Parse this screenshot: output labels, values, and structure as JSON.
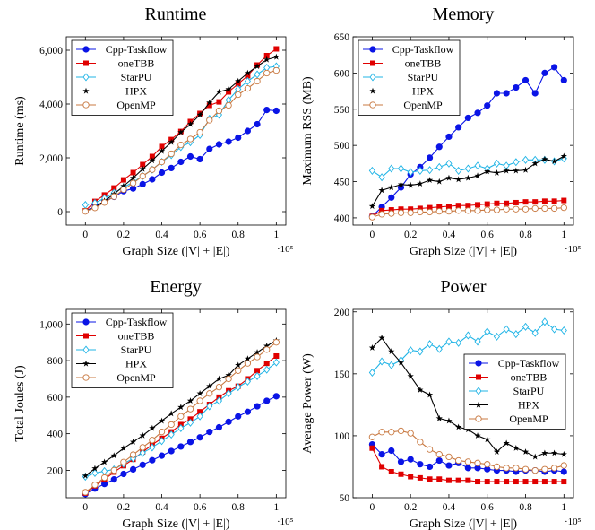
{
  "colors": {
    "Cpp-Taskflow": "#0a14e6",
    "oneTBB": "#e00000",
    "StarPU": "#20b4e6",
    "HPX": "#000000",
    "OpenMP": "#c87840"
  },
  "chart_data": [
    {
      "type": "line",
      "title": "Runtime",
      "xlabel": "Graph Size (|V| + |E|)",
      "ylabel": "Runtime (ms)",
      "x_multiplier": "·10⁵",
      "xlim": [
        -0.1,
        1.05
      ],
      "ylim": [
        -500,
        6500
      ],
      "xticks": [
        0,
        0.2,
        0.4,
        0.6,
        0.8,
        1
      ],
      "xtick_labels": [
        "0",
        "0.2",
        "0.4",
        "0.6",
        "0.8",
        "1"
      ],
      "yticks": [
        0,
        2000,
        4000,
        6000
      ],
      "ytick_labels": [
        "0",
        "2,000",
        "4,000",
        "6,000"
      ],
      "legend": "top-left",
      "x": [
        0,
        0.05,
        0.1,
        0.15,
        0.2,
        0.25,
        0.3,
        0.35,
        0.4,
        0.45,
        0.5,
        0.55,
        0.6,
        0.65,
        0.7,
        0.75,
        0.8,
        0.85,
        0.9,
        0.95,
        1.0
      ],
      "series": [
        {
          "name": "Cpp-Taskflow",
          "values": [
            20,
            200,
            380,
            550,
            760,
            860,
            1020,
            1200,
            1450,
            1620,
            1850,
            2050,
            1950,
            2330,
            2500,
            2600,
            2750,
            3000,
            3250,
            3780,
            3750
          ]
        },
        {
          "name": "oneTBB",
          "values": [
            30,
            380,
            620,
            880,
            1180,
            1450,
            1750,
            2050,
            2420,
            2680,
            2980,
            3350,
            3650,
            3950,
            4080,
            4450,
            4750,
            5050,
            5450,
            5800,
            6050
          ]
        },
        {
          "name": "StarPU",
          "values": [
            250,
            320,
            500,
            700,
            900,
            1100,
            1320,
            1560,
            1850,
            2100,
            2400,
            2580,
            2850,
            3450,
            3600,
            4150,
            4550,
            4850,
            5100,
            5350,
            5400
          ]
        },
        {
          "name": "HPX",
          "values": [
            20,
            150,
            400,
            650,
            950,
            1250,
            1580,
            1900,
            2250,
            2580,
            2950,
            3250,
            3600,
            4050,
            4450,
            4550,
            4850,
            5150,
            5400,
            5650,
            5750
          ]
        },
        {
          "name": "OpenMP",
          "values": [
            10,
            140,
            340,
            560,
            820,
            1060,
            1320,
            1560,
            1850,
            2150,
            2480,
            2700,
            2950,
            3400,
            3750,
            3950,
            4350,
            4580,
            4850,
            5150,
            5250
          ]
        }
      ]
    },
    {
      "type": "line",
      "title": "Memory",
      "xlabel": "Graph Size (|V| + |E|)",
      "ylabel": "Maximum RSS (MB)",
      "x_multiplier": "·10⁵",
      "xlim": [
        -0.1,
        1.05
      ],
      "ylim": [
        390,
        650
      ],
      "xticks": [
        0,
        0.2,
        0.4,
        0.6,
        0.8,
        1
      ],
      "xtick_labels": [
        "0",
        "0.2",
        "0.4",
        "0.6",
        "0.8",
        "1"
      ],
      "yticks": [
        400,
        450,
        500,
        550,
        600,
        650
      ],
      "ytick_labels": [
        "400",
        "450",
        "500",
        "550",
        "600",
        "650"
      ],
      "legend": "top-left",
      "x": [
        0,
        0.05,
        0.1,
        0.15,
        0.2,
        0.25,
        0.3,
        0.35,
        0.4,
        0.45,
        0.5,
        0.55,
        0.6,
        0.65,
        0.7,
        0.75,
        0.8,
        0.85,
        0.9,
        0.95,
        1.0
      ],
      "series": [
        {
          "name": "Cpp-Taskflow",
          "values": [
            402,
            415,
            428,
            442,
            460,
            470,
            483,
            498,
            512,
            525,
            538,
            545,
            555,
            572,
            572,
            580,
            590,
            572,
            600,
            608,
            590
          ]
        },
        {
          "name": "oneTBB",
          "values": [
            402,
            410,
            411,
            412,
            412,
            413,
            414,
            415,
            416,
            417,
            417,
            418,
            419,
            420,
            420,
            421,
            422,
            422,
            423,
            423,
            424
          ]
        },
        {
          "name": "StarPU",
          "values": [
            465,
            456,
            468,
            468,
            463,
            465,
            466,
            470,
            475,
            465,
            468,
            472,
            468,
            475,
            472,
            477,
            480,
            480,
            480,
            478,
            482
          ]
        },
        {
          "name": "HPX",
          "values": [
            416,
            438,
            442,
            446,
            445,
            447,
            452,
            450,
            455,
            453,
            455,
            458,
            464,
            462,
            465,
            465,
            466,
            475,
            481,
            478,
            485
          ]
        },
        {
          "name": "OpenMP",
          "values": [
            401,
            405,
            406,
            407,
            407,
            408,
            408,
            409,
            409,
            410,
            410,
            410,
            411,
            411,
            412,
            412,
            412,
            413,
            413,
            413,
            414
          ]
        }
      ]
    },
    {
      "type": "line",
      "title": "Energy",
      "xlabel": "Graph Size (|V| + |E|)",
      "ylabel": "Total Joules (J)",
      "x_multiplier": "·10⁵",
      "xlim": [
        -0.1,
        1.05
      ],
      "ylim": [
        50,
        1080
      ],
      "xticks": [
        0,
        0.2,
        0.4,
        0.6,
        0.8,
        1
      ],
      "xtick_labels": [
        "0",
        "0.2",
        "0.4",
        "0.6",
        "0.8",
        "1"
      ],
      "yticks": [
        200,
        400,
        600,
        800,
        1000
      ],
      "ytick_labels": [
        "200",
        "400",
        "600",
        "800",
        "1,000"
      ],
      "legend": "top-left",
      "x": [
        0,
        0.05,
        0.1,
        0.15,
        0.2,
        0.25,
        0.3,
        0.35,
        0.4,
        0.45,
        0.5,
        0.55,
        0.6,
        0.65,
        0.7,
        0.75,
        0.8,
        0.85,
        0.9,
        0.95,
        1.0
      ],
      "series": [
        {
          "name": "Cpp-Taskflow",
          "values": [
            70,
            100,
            125,
            150,
            180,
            205,
            230,
            255,
            280,
            305,
            330,
            355,
            380,
            410,
            435,
            465,
            495,
            520,
            550,
            580,
            605
          ]
        },
        {
          "name": "oneTBB",
          "values": [
            75,
            115,
            150,
            190,
            225,
            260,
            300,
            340,
            375,
            410,
            450,
            480,
            520,
            560,
            600,
            635,
            660,
            700,
            745,
            785,
            825
          ]
        },
        {
          "name": "StarPU",
          "values": [
            165,
            185,
            195,
            205,
            235,
            265,
            295,
            325,
            360,
            395,
            430,
            460,
            495,
            550,
            580,
            620,
            655,
            685,
            715,
            750,
            790
          ]
        },
        {
          "name": "HPX",
          "values": [
            170,
            210,
            245,
            280,
            320,
            355,
            390,
            430,
            470,
            510,
            545,
            580,
            620,
            660,
            700,
            720,
            775,
            810,
            845,
            880,
            910
          ]
        },
        {
          "name": "OpenMP",
          "values": [
            80,
            120,
            160,
            200,
            245,
            285,
            325,
            365,
            410,
            450,
            495,
            535,
            580,
            620,
            655,
            700,
            745,
            785,
            820,
            860,
            900
          ]
        }
      ]
    },
    {
      "type": "line",
      "title": "Power",
      "xlabel": "Graph Size (|V| + |E|)",
      "ylabel": "Average Power (W)",
      "x_multiplier": "·10⁵",
      "xlim": [
        -0.1,
        1.05
      ],
      "ylim": [
        50,
        202
      ],
      "xticks": [
        0,
        0.2,
        0.4,
        0.6,
        0.8,
        1
      ],
      "xtick_labels": [
        "0",
        "0.2",
        "0.4",
        "0.6",
        "0.8",
        "1"
      ],
      "yticks": [
        50,
        100,
        150,
        200
      ],
      "ytick_labels": [
        "50",
        "100",
        "150",
        "200"
      ],
      "legend": "middle-right",
      "x": [
        0,
        0.05,
        0.1,
        0.15,
        0.2,
        0.25,
        0.3,
        0.35,
        0.4,
        0.45,
        0.5,
        0.55,
        0.6,
        0.65,
        0.7,
        0.75,
        0.8,
        0.85,
        0.9,
        0.95,
        1.0
      ],
      "series": [
        {
          "name": "Cpp-Taskflow",
          "values": [
            93,
            85,
            88,
            79,
            81,
            77,
            75,
            80,
            76,
            78,
            74,
            74,
            73,
            72,
            72,
            71,
            72,
            72,
            71,
            72,
            71
          ]
        },
        {
          "name": "oneTBB",
          "values": [
            90,
            75,
            71,
            69,
            67,
            66,
            65,
            65,
            64,
            64,
            64,
            63,
            63,
            63,
            63,
            63,
            63,
            63,
            63,
            63,
            63
          ]
        },
        {
          "name": "StarPU",
          "values": [
            151,
            160,
            157,
            161,
            169,
            168,
            174,
            170,
            176,
            175,
            181,
            176,
            184,
            180,
            186,
            182,
            188,
            183,
            192,
            186,
            185
          ]
        },
        {
          "name": "HPX",
          "values": [
            171,
            179,
            168,
            159,
            148,
            137,
            133,
            114,
            112,
            107,
            105,
            100,
            97,
            87,
            94,
            90,
            87,
            83,
            86,
            86,
            85
          ]
        },
        {
          "name": "OpenMP",
          "values": [
            99,
            103,
            103,
            104,
            102,
            95,
            89,
            85,
            83,
            80,
            79,
            78,
            77,
            75,
            74,
            74,
            73,
            72,
            73,
            74,
            76
          ]
        }
      ]
    }
  ]
}
